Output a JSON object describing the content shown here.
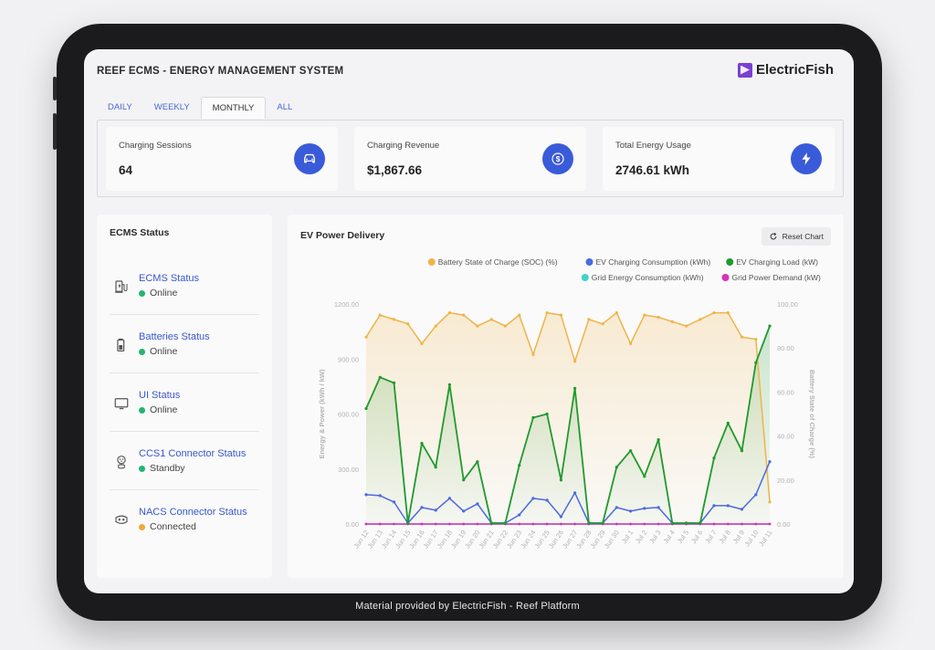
{
  "footer": "Material provided by ElectricFish - Reef Platform",
  "header": {
    "title": "REEF ECMS - ENERGY MANAGEMENT SYSTEM",
    "brand": "ElectricFish",
    "brand_color": "#7b3fd0"
  },
  "tabs": [
    {
      "label": "DAILY",
      "active": false
    },
    {
      "label": "WEEKLY",
      "active": false
    },
    {
      "label": "MONTHLY",
      "active": true
    },
    {
      "label": "ALL",
      "active": false
    }
  ],
  "kpis": [
    {
      "label": "Charging Sessions",
      "value": "64",
      "icon": "car-icon"
    },
    {
      "label": "Charging Revenue",
      "value": "$1,867.66",
      "icon": "dollar-icon"
    },
    {
      "label": "Total Energy Usage",
      "value": "2746.61 kWh",
      "icon": "bolt-icon"
    }
  ],
  "status_panel": {
    "title": "ECMS Status",
    "items": [
      {
        "name": "ECMS Status",
        "state": "Online",
        "state_color": "#22b573",
        "icon": "ev-charger-icon"
      },
      {
        "name": "Batteries Status",
        "state": "Online",
        "state_color": "#22b573",
        "icon": "battery-icon"
      },
      {
        "name": "UI Status",
        "state": "Online",
        "state_color": "#22b573",
        "icon": "monitor-icon"
      },
      {
        "name": "CCS1 Connector Status",
        "state": "Standby",
        "state_color": "#22b573",
        "icon": "ccs1-connector-icon"
      },
      {
        "name": "NACS Connector Status",
        "state": "Connected",
        "state_color": "#f0a83a",
        "icon": "nacs-connector-icon"
      }
    ]
  },
  "chart_panel": {
    "title": "EV Power Delivery",
    "reset_label": "Reset Chart"
  },
  "chart_data": {
    "type": "line",
    "x": [
      "Jun 12",
      "Jun 13",
      "Jun 14",
      "Jun 15",
      "Jun 16",
      "Jun 17",
      "Jun 18",
      "Jun 19",
      "Jun 20",
      "Jun 21",
      "Jun 22",
      "Jun 23",
      "Jun 24",
      "Jun 25",
      "Jun 26",
      "Jun 27",
      "Jun 28",
      "Jun 29",
      "Jun 30",
      "Jul 1",
      "Jul 2",
      "Jul 3",
      "Jul 4",
      "Jul 5",
      "Jul 6",
      "Jul 7",
      "Jul 8",
      "Jul 9",
      "Jul 10",
      "Jul 11"
    ],
    "ylabel": "Energy & Power (kWh / kW)",
    "y2label": "Battery State of Charge (%)",
    "ylim": [
      0,
      1200
    ],
    "y2lim": [
      0,
      100
    ],
    "yticks": [
      "0.00",
      "300.00",
      "600.00",
      "900.00",
      "1200.00"
    ],
    "y2ticks": [
      "0.00",
      "20.00",
      "40.00",
      "60.00",
      "80.00",
      "100.00"
    ],
    "legend_position": "top-right",
    "series": [
      {
        "name": "Battery State of Charge (SOC) (%)",
        "axis": "right",
        "color": "#f0b447",
        "values": [
          85,
          95,
          93,
          91,
          82,
          90,
          96,
          95,
          90,
          93,
          90,
          95,
          77,
          96,
          95,
          74,
          93,
          91,
          96,
          82,
          95,
          94,
          92,
          90,
          93,
          96,
          96,
          85,
          84,
          10
        ]
      },
      {
        "name": "EV Charging Consumption (kWh)",
        "axis": "left",
        "color": "#4b6ae0",
        "values": [
          160,
          155,
          120,
          5,
          90,
          75,
          140,
          70,
          110,
          5,
          5,
          50,
          140,
          130,
          40,
          170,
          5,
          5,
          90,
          70,
          85,
          90,
          5,
          5,
          5,
          100,
          100,
          80,
          160,
          340
        ]
      },
      {
        "name": "EV Charging Load (kW)",
        "axis": "left",
        "color": "#1f9a2e",
        "values": [
          630,
          800,
          770,
          5,
          440,
          310,
          760,
          240,
          340,
          5,
          5,
          320,
          580,
          600,
          240,
          740,
          5,
          5,
          310,
          400,
          260,
          460,
          5,
          5,
          5,
          360,
          550,
          400,
          880,
          1080
        ]
      },
      {
        "name": "Grid Energy Consumption (kWh)",
        "axis": "left",
        "color": "#3fd4c6",
        "values": [
          0,
          0,
          0,
          0,
          0,
          0,
          0,
          0,
          0,
          0,
          0,
          0,
          0,
          0,
          0,
          0,
          0,
          0,
          0,
          0,
          0,
          0,
          0,
          0,
          0,
          0,
          0,
          0,
          0,
          0
        ]
      },
      {
        "name": "Grid Power Demand (kW)",
        "axis": "left",
        "color": "#d932b6",
        "values": [
          0,
          0,
          0,
          0,
          0,
          0,
          0,
          0,
          0,
          0,
          0,
          0,
          0,
          0,
          0,
          0,
          0,
          0,
          0,
          0,
          0,
          0,
          0,
          0,
          0,
          0,
          0,
          0,
          0,
          0
        ]
      }
    ]
  }
}
